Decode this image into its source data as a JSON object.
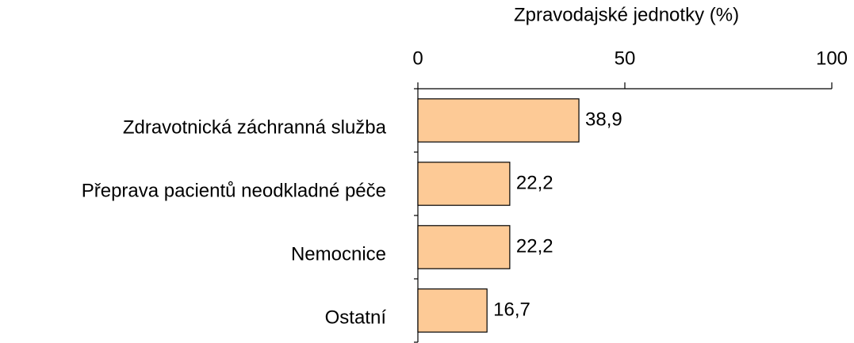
{
  "chart_data": {
    "type": "bar",
    "orientation": "horizontal",
    "x_label": "Zpravodajské jednotky (%)",
    "categories": [
      "Zdravotnická záchranná služba",
      "Přeprava pacientů neodkladné péče",
      "Nemocnice",
      "Ostatní"
    ],
    "values": [
      38.9,
      22.2,
      22.2,
      16.7
    ],
    "value_labels": [
      "38,9",
      "22,2",
      "22,2",
      "16,7"
    ],
    "color": "#fdca96",
    "xlim": [
      0,
      100
    ],
    "xticks": [
      0,
      50,
      100
    ],
    "grid": false
  }
}
